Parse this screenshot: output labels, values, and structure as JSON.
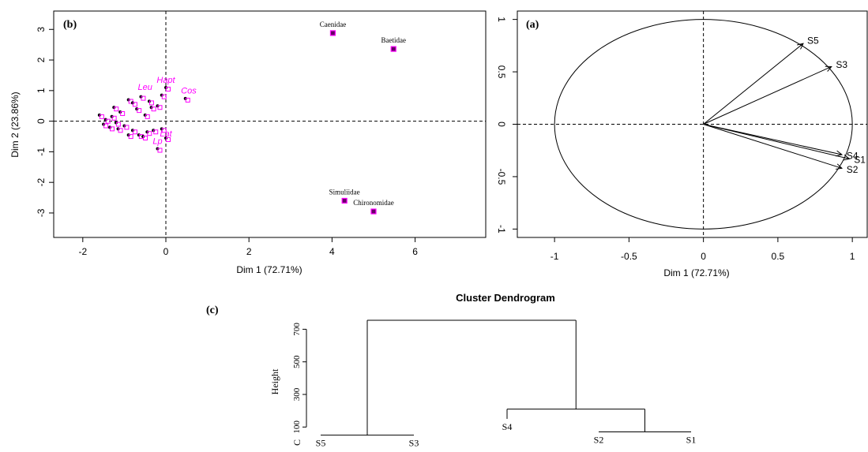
{
  "panel_b": {
    "tag": "(b)",
    "xlabel": "Dim 1 (72.71%)",
    "ylabel": "Dim 2 (23.86%)"
  },
  "panel_a": {
    "tag": "(a)",
    "xlabel": "Dim 1 (72.71%)"
  },
  "panel_c": {
    "tag": "(c)",
    "title": "Cluster Dendrogram",
    "ylabel": "Height",
    "ylabel_prefix": "C"
  },
  "colors": {
    "ink": "#000000",
    "magenta": "#ff00ff",
    "point_fill": "#660066"
  },
  "chart_data": [
    {
      "id": "b",
      "type": "scatter",
      "title": "(b)",
      "xlabel": "Dim 1 (72.71%)",
      "ylabel": "Dim 2 (23.86%)",
      "xlim": [
        -2.7,
        7.7
      ],
      "ylim": [
        -3.8,
        3.6
      ],
      "xticks": [
        -2,
        0,
        2,
        4,
        6
      ],
      "yticks": [
        -3,
        -2,
        -1,
        0,
        1,
        2,
        3
      ],
      "reference_lines": {
        "x": 0,
        "y": 0
      },
      "labeled_points": [
        {
          "label": "Caenidae",
          "x": 4.02,
          "y": 2.88
        },
        {
          "label": "Baetidae",
          "x": 5.48,
          "y": 2.36
        },
        {
          "label": "Simuliidae",
          "x": 4.3,
          "y": -2.6
        },
        {
          "label": "Chironomidae",
          "x": 5.0,
          "y": -2.95
        }
      ],
      "overlapping_labels": [
        {
          "label": "Hapt",
          "x": 0.0,
          "y": 1.26
        },
        {
          "label": "Leu",
          "x": -0.5,
          "y": 1.02
        },
        {
          "label": "Cos",
          "x": 0.55,
          "y": 0.9
        },
        {
          "label": "Lat",
          "x": 0.0,
          "y": -0.5
        },
        {
          "label": "Lp",
          "x": -0.2,
          "y": -0.75
        }
      ],
      "cluster_points": [
        {
          "x": -0.9,
          "y": 0.7
        },
        {
          "x": -0.6,
          "y": 0.8
        },
        {
          "x": -0.4,
          "y": 0.65
        },
        {
          "x": -0.2,
          "y": 0.5
        },
        {
          "x": -0.35,
          "y": 0.45
        },
        {
          "x": 0.0,
          "y": 1.1
        },
        {
          "x": -0.1,
          "y": 0.85
        },
        {
          "x": 0.47,
          "y": 0.74
        },
        {
          "x": -0.7,
          "y": 0.4
        },
        {
          "x": -1.1,
          "y": 0.3
        },
        {
          "x": -1.3,
          "y": 0.15
        },
        {
          "x": -1.45,
          "y": 0.05
        },
        {
          "x": -1.2,
          "y": -0.05
        },
        {
          "x": -1.0,
          "y": -0.15
        },
        {
          "x": -0.8,
          "y": -0.3
        },
        {
          "x": -0.65,
          "y": -0.45
        },
        {
          "x": -0.9,
          "y": -0.45
        },
        {
          "x": -1.15,
          "y": -0.25
        },
        {
          "x": -1.35,
          "y": -0.2
        },
        {
          "x": -1.5,
          "y": -0.1
        },
        {
          "x": -0.45,
          "y": -0.35
        },
        {
          "x": -0.3,
          "y": -0.3
        },
        {
          "x": -0.1,
          "y": -0.25
        },
        {
          "x": 0.0,
          "y": -0.55
        },
        {
          "x": -0.2,
          "y": -0.9
        },
        {
          "x": -0.55,
          "y": -0.5
        },
        {
          "x": -1.6,
          "y": 0.2
        },
        {
          "x": -1.25,
          "y": 0.45
        },
        {
          "x": -0.8,
          "y": 0.6
        },
        {
          "x": -0.5,
          "y": 0.2
        }
      ]
    },
    {
      "id": "a",
      "type": "line",
      "title": "(a)",
      "xlabel": "Dim 1 (72.71%)",
      "xlim": [
        -1.25,
        1.1
      ],
      "ylim": [
        -1.08,
        1.08
      ],
      "xticks": [
        -1.0,
        -0.5,
        0.0,
        0.5,
        1.0
      ],
      "yticks": [
        -1.0,
        -0.5,
        0.0,
        0.5,
        1.0
      ],
      "unit_circle": true,
      "reference_lines": {
        "x": 0,
        "y": 0
      },
      "vectors": [
        {
          "name": "S5",
          "x": 0.67,
          "y": 0.77
        },
        {
          "name": "S3",
          "x": 0.86,
          "y": 0.55
        },
        {
          "name": "S4",
          "x": 0.93,
          "y": -0.29
        },
        {
          "name": "S1",
          "x": 0.98,
          "y": -0.33
        },
        {
          "name": "S2",
          "x": 0.93,
          "y": -0.42
        }
      ]
    },
    {
      "id": "c",
      "type": "dendrogram",
      "title": "Cluster Dendrogram",
      "ylabel": "Height",
      "yticks": [
        100,
        300,
        500,
        700
      ],
      "leaves": [
        {
          "name": "S5",
          "height": 50
        },
        {
          "name": "S3",
          "height": 50
        },
        {
          "name": "S4",
          "height": 150
        },
        {
          "name": "S2",
          "height": 70
        },
        {
          "name": "S1",
          "height": 70
        }
      ],
      "merges": [
        {
          "left": "S5",
          "right": "S3",
          "height": 50
        },
        {
          "left": "S2",
          "right": "S1",
          "height": 70
        },
        {
          "left": "S4",
          "right": "S2+S1",
          "height": 210
        },
        {
          "left": "S5+S3",
          "right": "S4+S2+S1",
          "height": 755
        }
      ]
    }
  ]
}
